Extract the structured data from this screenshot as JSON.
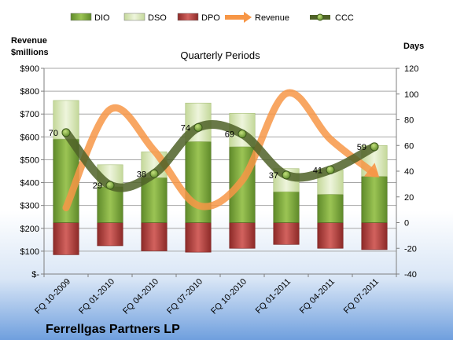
{
  "chart_data": {
    "type": "bar",
    "title": "Ferrellgas Partners LP",
    "subtitle": "Quarterly Periods",
    "categories": [
      "FQ 10-2009",
      "FQ 01-2010",
      "FQ 04-2010",
      "FQ 07-2010",
      "FQ 10-2010",
      "FQ 01-2011",
      "FQ 04-2011",
      "FQ 07-2011"
    ],
    "left_axis": {
      "label_line1": "Revenue",
      "label_line2": "$millions",
      "min": 0,
      "max": 900,
      "step": 100,
      "tick_labels": [
        "$-",
        "$100",
        "$200",
        "$300",
        "$400",
        "$500",
        "$600",
        "$700",
        "$800",
        "$900"
      ]
    },
    "right_axis": {
      "label": "Days",
      "min": -40,
      "max": 120,
      "step": 20,
      "tick_labels": [
        "-40",
        "-20",
        "0",
        "20",
        "40",
        "60",
        "80",
        "100",
        "120"
      ]
    },
    "series": [
      {
        "name": "DIO",
        "axis": "right",
        "kind": "bar",
        "color": "#7FA83A",
        "values": [
          65,
          28,
          35,
          63,
          59,
          24,
          22,
          36
        ]
      },
      {
        "name": "DSO",
        "axis": "right",
        "kind": "bar",
        "color": "#D7E6B4",
        "values": [
          30,
          17,
          20,
          30,
          26,
          18,
          19,
          24
        ]
      },
      {
        "name": "DPO",
        "axis": "right",
        "kind": "bar",
        "color": "#C0504D",
        "values": [
          -25,
          -18,
          -22,
          -23,
          -20,
          -17,
          -20,
          -21
        ]
      },
      {
        "name": "Revenue",
        "axis": "left",
        "kind": "line",
        "color": "#F79646",
        "values": [
          290,
          720,
          540,
          300,
          410,
          790,
          590,
          440
        ]
      },
      {
        "name": "CCC",
        "axis": "right",
        "kind": "line",
        "color": "#4F6228",
        "values": [
          70,
          29,
          38,
          74,
          69,
          37,
          41,
          59
        ]
      }
    ],
    "ccc_labels": [
      "70",
      "29",
      "38",
      "74",
      "69",
      "37",
      "41",
      "59"
    ],
    "legend_position": "top",
    "grid": true
  }
}
